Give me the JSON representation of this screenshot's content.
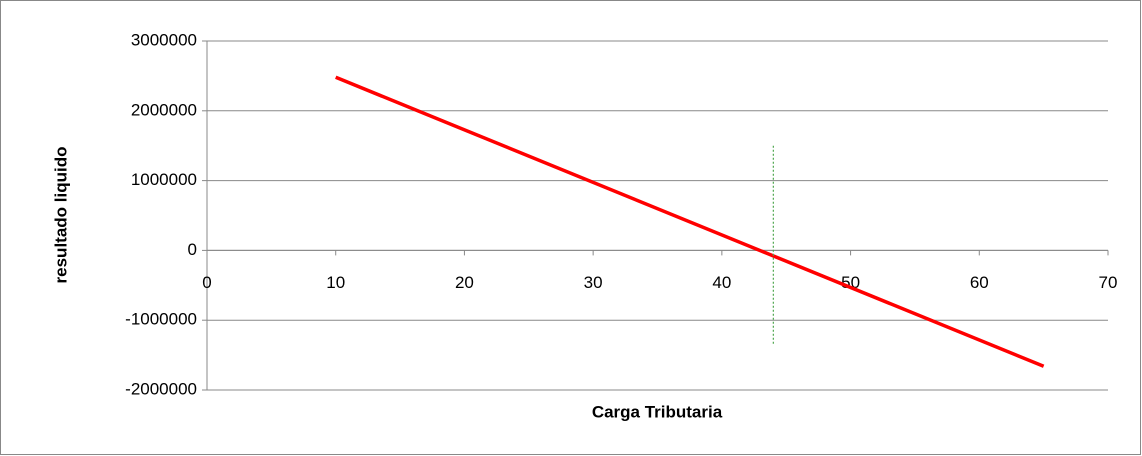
{
  "chart_data": {
    "type": "scatter-line",
    "x_label": "Carga Tributaria",
    "y_label": "resultado liquido",
    "xlim": [
      0,
      70
    ],
    "xticks": [
      0,
      10,
      20,
      30,
      40,
      50,
      60,
      70
    ],
    "ylim": [
      -2000000,
      3000000
    ],
    "yticks": [
      -2000000,
      -1000000,
      0,
      1000000,
      2000000,
      3000000
    ],
    "grid": true,
    "series": [
      {
        "color": "#ff0000",
        "x": [
          10,
          65
        ],
        "values": [
          2480000,
          -1660000
        ]
      },
      {
        "color": "#4ea64e",
        "dashed": true,
        "x": [
          44,
          44
        ],
        "values": [
          1500000,
          -1350000
        ]
      }
    ]
  }
}
